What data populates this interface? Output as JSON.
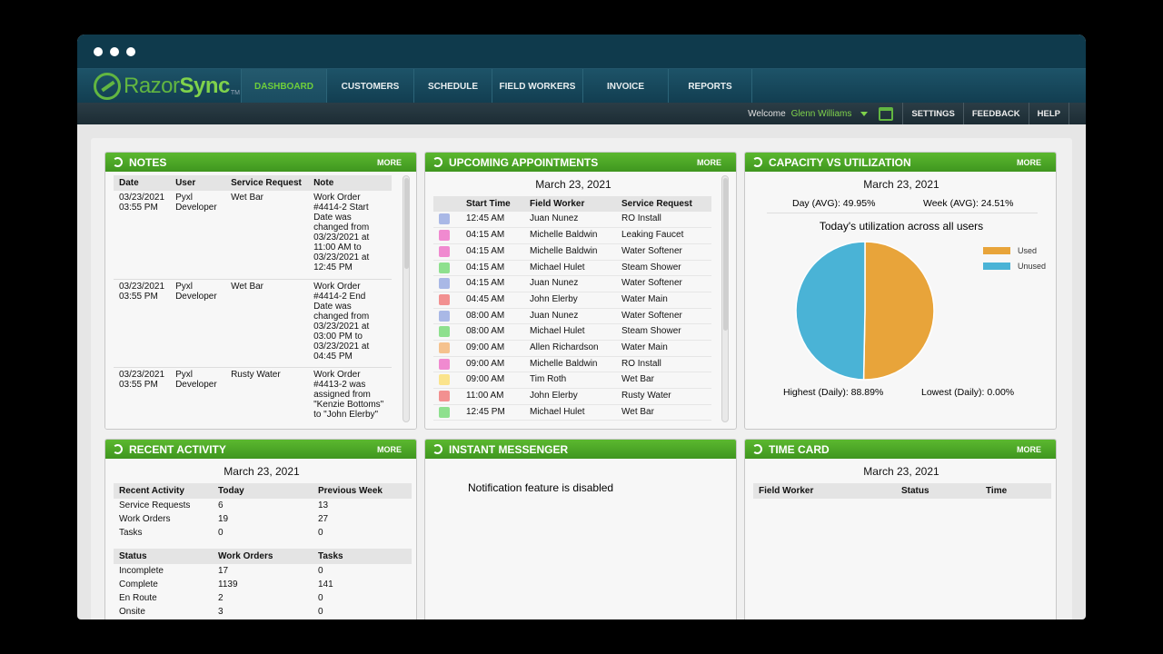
{
  "nav": {
    "logo_prefix": "Razor",
    "logo_suffix": "Sync",
    "logo_tm": "TM",
    "tabs": [
      "DASHBOARD",
      "CUSTOMERS",
      "SCHEDULE",
      "FIELD WORKERS",
      "INVOICE",
      "REPORTS"
    ],
    "active_tab": "DASHBOARD"
  },
  "subbar": {
    "welcome_label": "Welcome",
    "user_name": "Glenn Williams",
    "links": [
      "SETTINGS",
      "FEEDBACK",
      "HELP"
    ]
  },
  "notes": {
    "title": "NOTES",
    "more": "MORE",
    "columns": [
      "Date",
      "User",
      "Service Request",
      "Note"
    ],
    "rows": [
      {
        "date": "03/23/2021 03:55 PM",
        "user": "Pyxl Developer",
        "request": "Wet Bar",
        "note": "Work Order #4414-2 Start Date was changed from 03/23/2021 at 11:00 AM to 03/23/2021 at 12:45 PM"
      },
      {
        "date": "03/23/2021 03:55 PM",
        "user": "Pyxl Developer",
        "request": "Wet Bar",
        "note": "Work Order #4414-2 End Date was changed from 03/23/2021 at 03:00 PM to 03/23/2021 at 04:45 PM"
      },
      {
        "date": "03/23/2021 03:55 PM",
        "user": "Pyxl Developer",
        "request": "Rusty Water",
        "note": "Work Order #4413-2 was assigned from \"Kenzie Bottoms\" to \"John Elerby\""
      }
    ]
  },
  "appointments": {
    "title": "UPCOMING APPOINTMENTS",
    "more": "MORE",
    "date": "March 23, 2021",
    "columns": [
      "",
      "Start Time",
      "Field Worker",
      "Service Request"
    ],
    "rows": [
      {
        "color": "#a9b8e6",
        "time": "12:45 AM",
        "worker": "Juan Nunez",
        "request": "RO Install"
      },
      {
        "color": "#f08ad0",
        "time": "04:15 AM",
        "worker": "Michelle Baldwin",
        "request": "Leaking Faucet"
      },
      {
        "color": "#f08ad0",
        "time": "04:15 AM",
        "worker": "Michelle Baldwin",
        "request": "Water Softener"
      },
      {
        "color": "#8ee08e",
        "time": "04:15 AM",
        "worker": "Michael Hulet",
        "request": "Steam Shower"
      },
      {
        "color": "#a9b8e6",
        "time": "04:15 AM",
        "worker": "Juan Nunez",
        "request": "Water Softener"
      },
      {
        "color": "#f29090",
        "time": "04:45 AM",
        "worker": "John Elerby",
        "request": "Water Main"
      },
      {
        "color": "#a9b8e6",
        "time": "08:00 AM",
        "worker": "Juan Nunez",
        "request": "Water Softener"
      },
      {
        "color": "#8ee08e",
        "time": "08:00 AM",
        "worker": "Michael Hulet",
        "request": "Steam Shower"
      },
      {
        "color": "#f5c28e",
        "time": "09:00 AM",
        "worker": "Allen Richardson",
        "request": "Water Main"
      },
      {
        "color": "#f08ad0",
        "time": "09:00 AM",
        "worker": "Michelle Baldwin",
        "request": "RO Install"
      },
      {
        "color": "#fbe48c",
        "time": "09:00 AM",
        "worker": "Tim Roth",
        "request": "Wet Bar"
      },
      {
        "color": "#f29090",
        "time": "11:00 AM",
        "worker": "John Elerby",
        "request": "Rusty Water"
      },
      {
        "color": "#8ee08e",
        "time": "12:45 PM",
        "worker": "Michael Hulet",
        "request": "Wet Bar"
      }
    ]
  },
  "capacity": {
    "title": "CAPACITY VS UTILIZATION",
    "more": "MORE",
    "date": "March 23, 2021",
    "day_avg": "Day (AVG): 49.95%",
    "week_avg": "Week (AVG): 24.51%",
    "subtitle": "Today's utilization across all users",
    "highest": "Highest (Daily): 88.89%",
    "lowest": "Lowest (Daily): 0.00%",
    "used_color": "#e8a43a",
    "unused_color": "#4ab3d6"
  },
  "chart_data": {
    "type": "pie",
    "title": "Today's utilization across all users",
    "labels": [
      "Used",
      "Unused"
    ],
    "values": [
      50.3,
      49.7
    ],
    "colors": [
      "#e8a43a",
      "#4ab3d6"
    ],
    "legend": "top-right"
  },
  "activity": {
    "title": "RECENT ACTIVITY",
    "more": "MORE",
    "date": "March 23, 2021",
    "columns": [
      "Recent Activity",
      "Today",
      "Previous Week"
    ],
    "rows": [
      {
        "label": "Service Requests",
        "today": "6",
        "prev": "13"
      },
      {
        "label": "Work Orders",
        "today": "19",
        "prev": "27"
      },
      {
        "label": "Tasks",
        "today": "0",
        "prev": "0"
      }
    ],
    "status_columns": [
      "Status",
      "Work Orders",
      "Tasks"
    ],
    "status_rows": [
      {
        "label": "Incomplete",
        "wo": "17",
        "tasks": "0"
      },
      {
        "label": "Complete",
        "wo": "1139",
        "tasks": "141"
      },
      {
        "label": "En Route",
        "wo": "2",
        "tasks": "0"
      },
      {
        "label": "Onsite",
        "wo": "3",
        "tasks": "0"
      }
    ]
  },
  "messenger": {
    "title": "INSTANT MESSENGER",
    "message": "Notification feature is disabled"
  },
  "timecard": {
    "title": "TIME CARD",
    "more": "MORE",
    "date": "March 23, 2021",
    "columns": [
      "Field Worker",
      "Status",
      "Time"
    ]
  }
}
